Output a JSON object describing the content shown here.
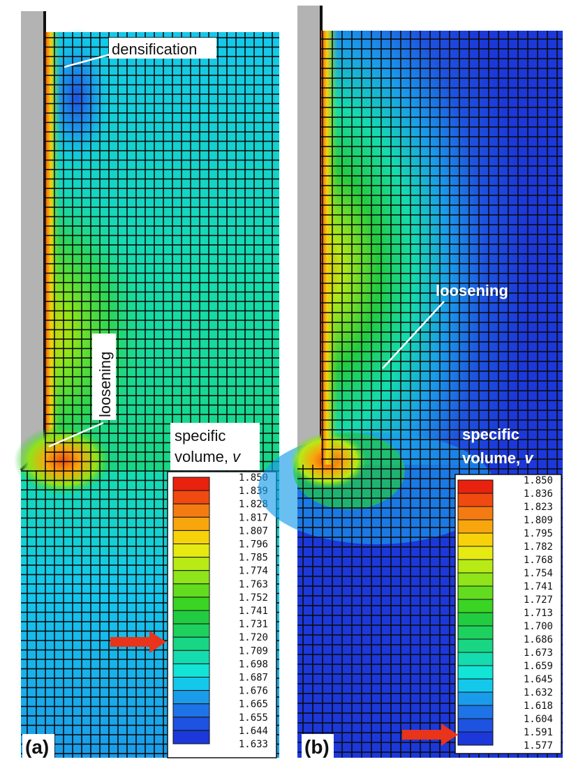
{
  "panels": [
    {
      "id": "a",
      "tag": "(a)",
      "annotations": {
        "densification": "densification",
        "loosening": "loosening"
      },
      "legend": {
        "title_line1": "specific",
        "title_line2": "volume, ",
        "title_var": "v",
        "values": [
          "1.850",
          "1.839",
          "1.828",
          "1.817",
          "1.807",
          "1.796",
          "1.785",
          "1.774",
          "1.763",
          "1.752",
          "1.741",
          "1.731",
          "1.720",
          "1.709",
          "1.698",
          "1.687",
          "1.676",
          "1.665",
          "1.655",
          "1.644",
          "1.633"
        ],
        "arrow_value": "1.720"
      }
    },
    {
      "id": "b",
      "tag": "(b)",
      "annotations": {
        "loosening": "loosening"
      },
      "legend": {
        "title_line1": "specific",
        "title_line2": "volume, ",
        "title_var": "v",
        "values": [
          "1.850",
          "1.836",
          "1.823",
          "1.809",
          "1.795",
          "1.782",
          "1.768",
          "1.754",
          "1.741",
          "1.727",
          "1.713",
          "1.700",
          "1.686",
          "1.673",
          "1.659",
          "1.645",
          "1.632",
          "1.618",
          "1.604",
          "1.591",
          "1.577"
        ],
        "arrow_value": "1.591"
      }
    }
  ],
  "colors": {
    "scale": [
      "#e8220e",
      "#f04a10",
      "#f47b12",
      "#f8a60e",
      "#f7d20b",
      "#e6ea12",
      "#b8ea16",
      "#8fe41a",
      "#62dc1e",
      "#3ad424",
      "#22cc40",
      "#1ed05e",
      "#18d684",
      "#14dcae",
      "#12e4d6",
      "#14c8ec",
      "#1a9cea",
      "#1e74e6",
      "#1e52e0",
      "#1c38da"
    ],
    "wall": "#b3b3b3",
    "arrow": "#e8341a",
    "mesh_line": "#0b0b0b"
  }
}
